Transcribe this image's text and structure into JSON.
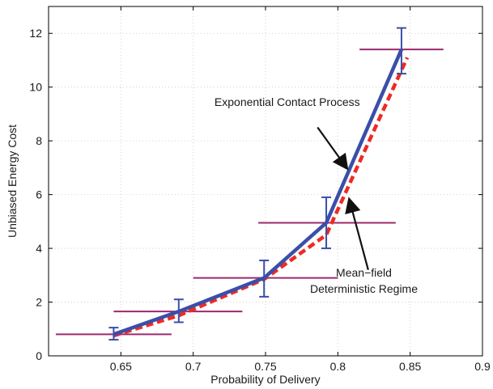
{
  "chart_data": {
    "type": "line",
    "title": "",
    "xlabel": "Probability of Delivery",
    "ylabel": "Unbiased Energy Cost",
    "xlim": [
      0.6,
      0.9
    ],
    "ylim": [
      0,
      13
    ],
    "xticks": [
      0.65,
      0.7,
      0.75,
      0.8,
      0.85,
      0.9
    ],
    "yticks": [
      0,
      2,
      4,
      6,
      8,
      10,
      12
    ],
    "xtick_labels": [
      "0.65",
      "0.7",
      "0.75",
      "0.8",
      "0.85",
      "0.9"
    ],
    "ytick_labels": [
      "0",
      "2",
      "4",
      "6",
      "8",
      "10",
      "12"
    ],
    "grid": true,
    "series": [
      {
        "name": "Exponential Contact Process",
        "color": "#3a4fa8",
        "style": "solid",
        "x": [
          0.645,
          0.69,
          0.749,
          0.792,
          0.844
        ],
        "y": [
          0.8,
          1.65,
          2.9,
          4.95,
          11.4
        ]
      },
      {
        "name": "Mean−field Deterministic Regime",
        "color": "#ee2a22",
        "style": "dashed",
        "x": [
          0.645,
          0.69,
          0.749,
          0.792,
          0.848
        ],
        "y": [
          0.75,
          1.5,
          2.85,
          4.5,
          11.1
        ]
      }
    ],
    "error_bars": {
      "color_x": "#9c2a6e",
      "color_y": "#3a4fa8",
      "points": [
        {
          "x": 0.645,
          "y": 0.8,
          "xerr": [
            0.605,
            0.685
          ],
          "yerr": [
            0.6,
            1.05
          ]
        },
        {
          "x": 0.69,
          "y": 1.65,
          "xerr": [
            0.645,
            0.734
          ],
          "yerr": [
            1.25,
            2.1
          ]
        },
        {
          "x": 0.749,
          "y": 2.9,
          "xerr": [
            0.7,
            0.8
          ],
          "yerr": [
            2.2,
            3.55
          ]
        },
        {
          "x": 0.792,
          "y": 4.95,
          "xerr": [
            0.745,
            0.84
          ],
          "yerr": [
            4.0,
            5.9
          ]
        },
        {
          "x": 0.844,
          "y": 11.4,
          "xerr": [
            0.815,
            0.873
          ],
          "yerr": [
            10.5,
            12.2
          ]
        }
      ]
    },
    "annotations": [
      {
        "lines": [
          "Exponential Contact Process"
        ],
        "x": 0.765,
        "y": 9.3,
        "anchor": "middle",
        "arrow_from": [
          0.786,
          8.5
        ],
        "arrow_to": [
          0.806,
          7.0
        ]
      },
      {
        "lines": [
          "Mean−field",
          "Deterministic Regime"
        ],
        "x": 0.818,
        "y": 2.95,
        "anchor": "middle",
        "arrow_from": [
          0.821,
          3.2
        ],
        "arrow_to": [
          0.808,
          5.8
        ]
      }
    ]
  }
}
